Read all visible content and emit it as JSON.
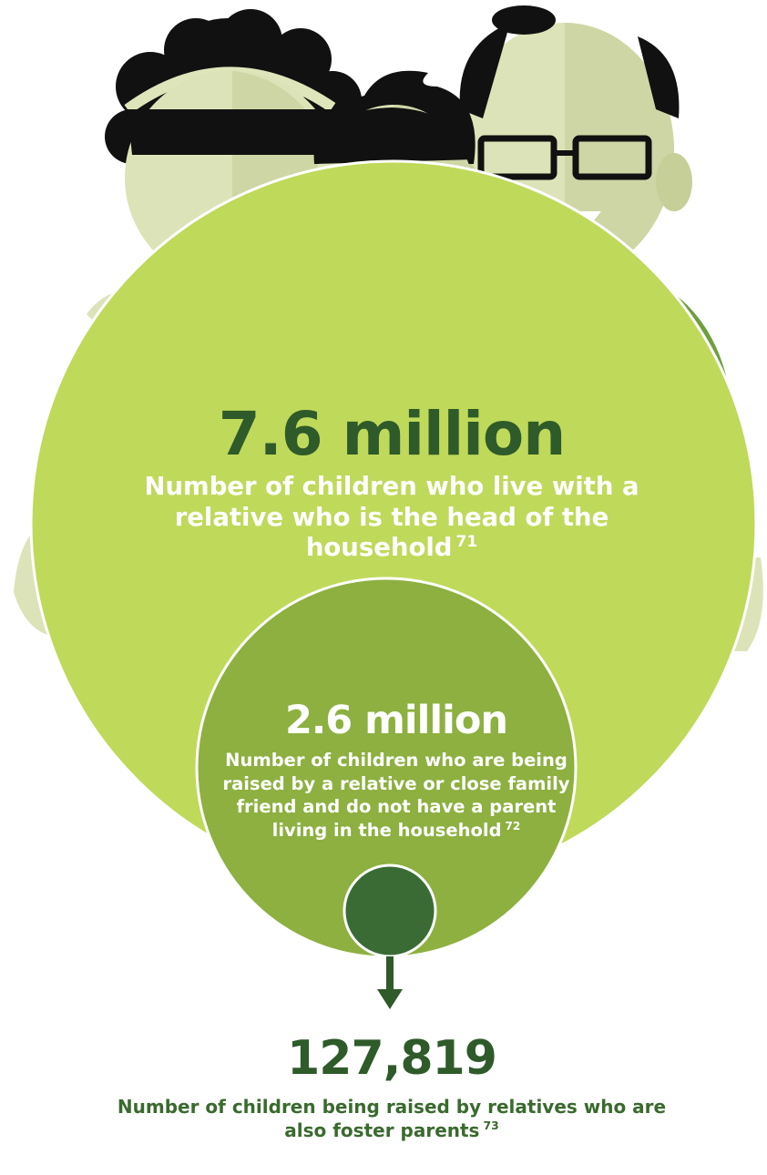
{
  "colors": {
    "outer_circle": "#bfd95a",
    "middle_circle": "#8db040",
    "inner_circle": "#3a6b35",
    "dark_green": "#2f5a2a",
    "shirt_dark": "#3f7a35",
    "shirt_mid": "#6f9e3f",
    "skin": "#dde3b8",
    "skin_shade": "#c7cf98",
    "hair": "#111111"
  },
  "stats": [
    {
      "value": "7.6 million",
      "description": "Number of children who live with a relative who is the head of the household",
      "ref": "71"
    },
    {
      "value": "2.6 million",
      "description": "Number of children who are being raised by a relative or close family friend and do not have a parent living in the household",
      "ref": "72"
    },
    {
      "value": "127,819",
      "description": "Number of children being raised by relatives who are also foster parents",
      "ref": "73"
    }
  ],
  "icons": [
    "woman-figure-icon",
    "boy-figure-icon",
    "man-with-glasses-figure-icon",
    "down-arrow-icon"
  ]
}
